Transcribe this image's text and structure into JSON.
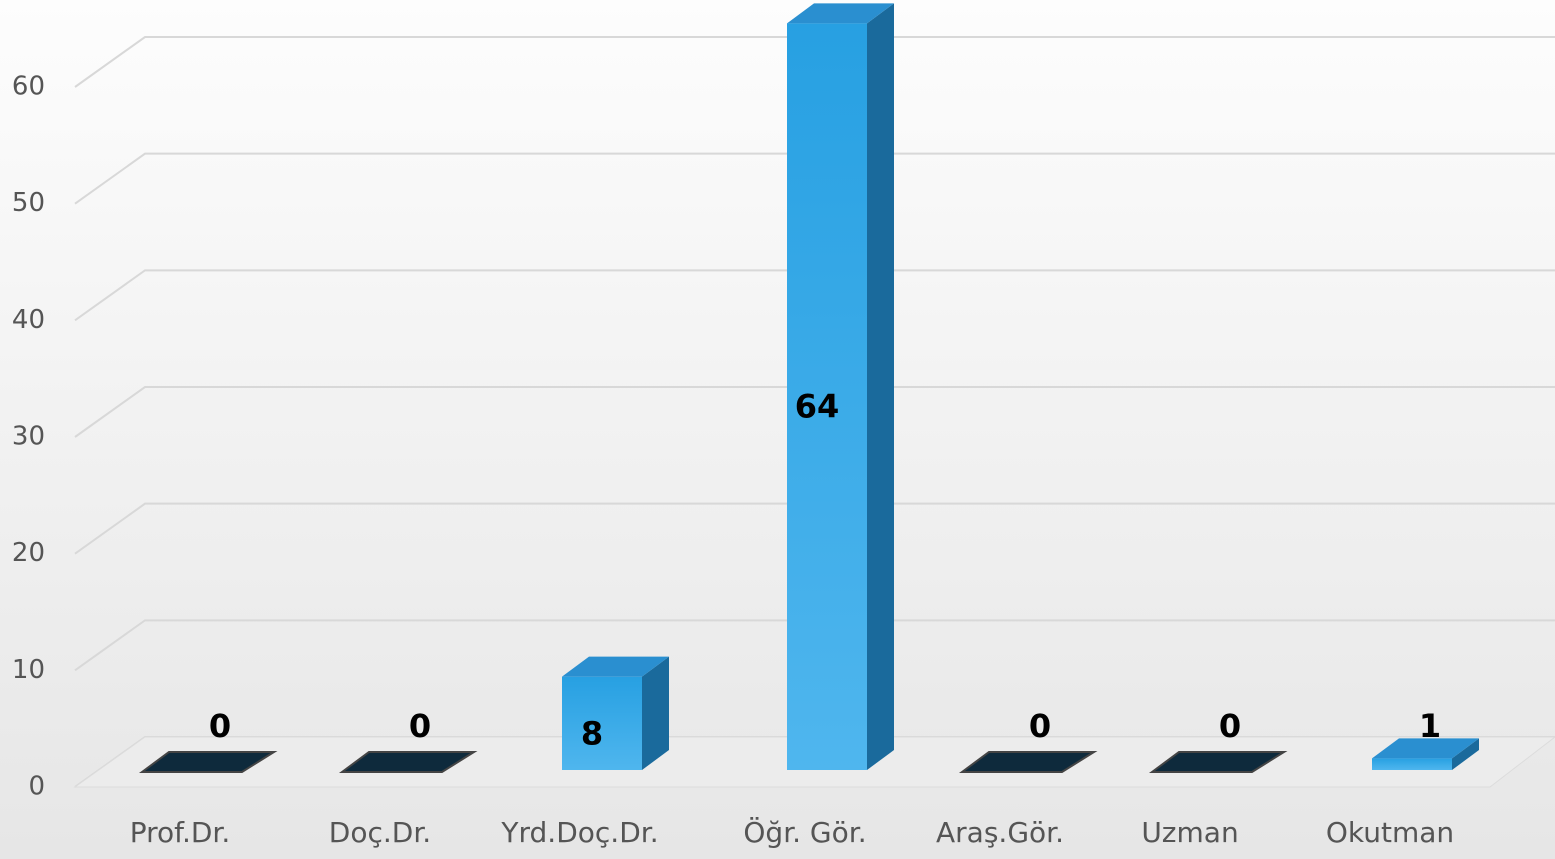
{
  "chart_data": {
    "type": "bar3d",
    "categories": [
      "Prof.Dr.",
      "Doç.Dr.",
      "Yrd.Doç.Dr.",
      "Öğr. Gör.",
      "Araş.Gör.",
      "Uzman",
      "Okutman"
    ],
    "values": [
      0,
      0,
      8,
      64,
      0,
      0,
      1
    ],
    "color": "#2ea3e6",
    "ylim": [
      0,
      60
    ],
    "yticks": [
      0,
      10,
      20,
      30,
      40,
      50,
      60
    ],
    "grid": true
  }
}
